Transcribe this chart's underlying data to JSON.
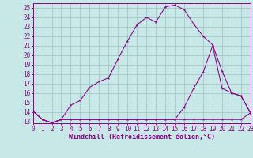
{
  "xlabel": "Windchill (Refroidissement éolien,°C)",
  "bg_color": "#c8e8e8",
  "grid_color": "#a0c0c0",
  "line_color": "#880088",
  "xlim": [
    0,
    23
  ],
  "ylim": [
    12.8,
    25.5
  ],
  "yticks": [
    13,
    14,
    15,
    16,
    17,
    18,
    19,
    20,
    21,
    22,
    23,
    24,
    25
  ],
  "xticks": [
    0,
    1,
    2,
    3,
    4,
    5,
    6,
    7,
    8,
    9,
    10,
    11,
    12,
    13,
    14,
    15,
    16,
    17,
    18,
    19,
    20,
    21,
    22,
    23
  ],
  "line1_x": [
    0,
    1,
    2,
    3,
    4,
    5,
    6,
    7,
    8,
    9,
    10,
    11,
    12,
    13,
    14,
    15,
    16,
    17,
    18,
    19,
    20,
    21,
    22,
    23
  ],
  "line1_y": [
    14.1,
    13.2,
    12.85,
    13.2,
    13.2,
    13.2,
    13.2,
    13.2,
    13.2,
    13.2,
    13.2,
    13.2,
    13.2,
    13.2,
    13.2,
    13.2,
    13.2,
    13.2,
    13.2,
    13.2,
    13.2,
    13.2,
    13.2,
    13.9
  ],
  "line2_x": [
    0,
    1,
    2,
    3,
    4,
    5,
    6,
    7,
    8,
    9,
    10,
    11,
    12,
    13,
    14,
    15,
    16,
    17,
    18,
    19,
    20,
    21,
    22,
    23
  ],
  "line2_y": [
    14.1,
    13.2,
    12.85,
    13.2,
    13.2,
    13.2,
    13.2,
    13.2,
    13.2,
    13.2,
    13.2,
    13.2,
    13.2,
    13.2,
    13.2,
    13.2,
    14.5,
    16.5,
    18.2,
    21.0,
    16.5,
    16.0,
    15.7,
    13.9
  ],
  "line3_x": [
    0,
    1,
    2,
    3,
    4,
    5,
    6,
    7,
    8,
    9,
    10,
    11,
    12,
    13,
    14,
    15,
    16,
    17,
    18,
    19,
    20,
    21,
    22,
    23
  ],
  "line3_y": [
    14.1,
    13.2,
    12.85,
    13.2,
    14.7,
    15.2,
    16.6,
    17.2,
    17.6,
    19.6,
    21.5,
    23.2,
    24.0,
    23.5,
    25.1,
    25.3,
    24.8,
    23.3,
    22.0,
    21.1,
    18.3,
    16.0,
    15.7,
    13.9
  ],
  "tick_fontsize": 5.5,
  "xlabel_fontsize": 6.0
}
